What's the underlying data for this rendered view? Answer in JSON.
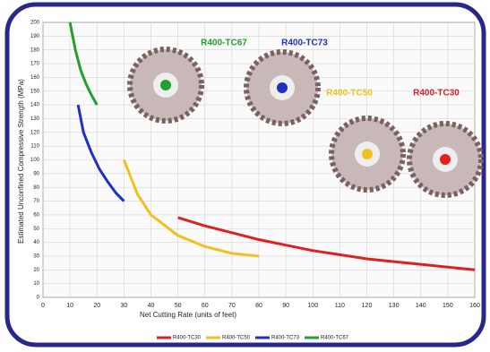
{
  "chart_data": {
    "type": "line",
    "x_label": "Net Cutting Rate (units of feet)",
    "y_label": "Estimated Unconfined Compressive Strength (MPa)",
    "annotations": [
      "R400-TC67",
      "R400-TC73",
      "R400-TC50",
      "R400-TC30"
    ],
    "xlim": [
      0,
      160
    ],
    "xticks": [
      0,
      10,
      20,
      30,
      40,
      50,
      60,
      70,
      80,
      90,
      100,
      110,
      120,
      130,
      140,
      150,
      160
    ],
    "ylim": [
      0,
      200
    ],
    "yticks": [
      0,
      10,
      20,
      30,
      40,
      50,
      60,
      70,
      80,
      90,
      100,
      110,
      120,
      130,
      140,
      150,
      160,
      170,
      180,
      190,
      200
    ],
    "grid": true,
    "series": [
      {
        "name": "R400-TC30",
        "color": "#e02020",
        "x": [
          50,
          60,
          70,
          80,
          90,
          100,
          110,
          120,
          130,
          140,
          150,
          160
        ],
        "values": [
          58,
          52,
          47,
          42,
          38,
          34,
          31,
          28,
          26,
          24,
          22,
          20
        ]
      },
      {
        "name": "R400-TC50",
        "color": "#f0c020",
        "x": [
          30,
          35,
          40,
          50,
          60,
          70,
          80
        ],
        "values": [
          100,
          75,
          60,
          45,
          37,
          32,
          30
        ]
      },
      {
        "name": "R400-TC73",
        "color": "#2030c0",
        "x": [
          13,
          15,
          18,
          21,
          24,
          27,
          30
        ],
        "values": [
          140,
          120,
          105,
          93,
          84,
          76,
          70
        ]
      },
      {
        "name": "R400-TC67",
        "color": "#20a030",
        "x": [
          10,
          12,
          14,
          16,
          18,
          20
        ],
        "values": [
          200,
          180,
          165,
          155,
          147,
          140
        ]
      }
    ]
  }
}
